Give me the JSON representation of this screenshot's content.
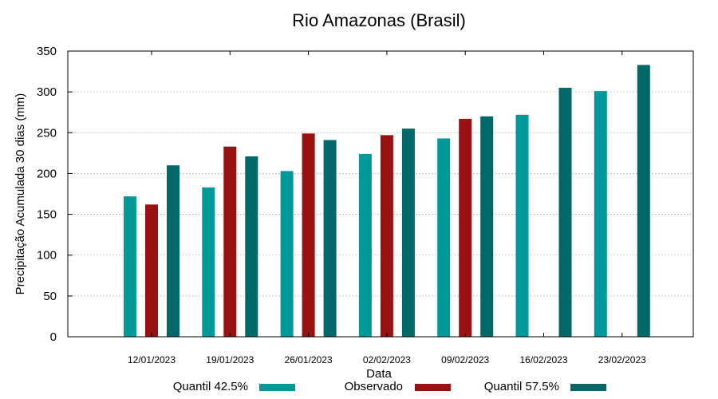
{
  "chart_data": {
    "type": "bar",
    "title": "Rio Amazonas (Brasil)",
    "xlabel": "Data",
    "ylabel": "Precipitação Acumulada 30 dias (mm)",
    "ylim": [
      0,
      350
    ],
    "yticks": [
      0,
      50,
      100,
      150,
      200,
      250,
      300,
      350
    ],
    "grid": true,
    "legend_position": "bottom",
    "categories": [
      "12/01/2023",
      "19/01/2023",
      "26/01/2023",
      "02/02/2023",
      "09/02/2023",
      "16/02/2023",
      "23/02/2023"
    ],
    "series": [
      {
        "name": "Quantil 42.5%",
        "color": "#009999",
        "values": [
          172,
          183,
          203,
          224,
          243,
          272,
          301
        ]
      },
      {
        "name": "Observado",
        "color": "#991111",
        "values": [
          162,
          233,
          249,
          247,
          267,
          null,
          null
        ]
      },
      {
        "name": "Quantil 57.5%",
        "color": "#006868",
        "values": [
          210,
          221,
          241,
          255,
          270,
          305,
          333
        ]
      }
    ]
  }
}
